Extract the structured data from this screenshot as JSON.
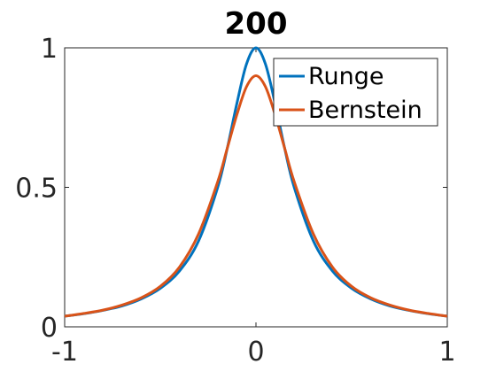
{
  "chart_data": {
    "type": "line",
    "title": "200",
    "xlabel": "",
    "ylabel": "",
    "xlim": [
      -1,
      1
    ],
    "ylim": [
      0,
      1
    ],
    "x_ticks": [
      "-1",
      "0",
      "1"
    ],
    "y_ticks": [
      "0",
      "0.5",
      "1"
    ],
    "grid": false,
    "legend_position": "top-right",
    "series": [
      {
        "name": "Runge",
        "color": "#0072BD",
        "x": [
          -1,
          -0.9,
          -0.8,
          -0.7,
          -0.6,
          -0.5,
          -0.4,
          -0.3,
          -0.2,
          -0.15,
          -0.1,
          -0.05,
          0,
          0.05,
          0.1,
          0.15,
          0.2,
          0.3,
          0.4,
          0.5,
          0.6,
          0.7,
          0.8,
          0.9,
          1
        ],
        "y": [
          0.038,
          0.047,
          0.059,
          0.075,
          0.1,
          0.138,
          0.2,
          0.308,
          0.5,
          0.64,
          0.8,
          0.941,
          1,
          0.941,
          0.8,
          0.64,
          0.5,
          0.308,
          0.2,
          0.138,
          0.1,
          0.075,
          0.059,
          0.047,
          0.038
        ]
      },
      {
        "name": "Bernstein",
        "color": "#D95319",
        "x": [
          -1,
          -0.9,
          -0.8,
          -0.7,
          -0.6,
          -0.5,
          -0.4,
          -0.3,
          -0.2,
          -0.15,
          -0.1,
          -0.05,
          0,
          0.05,
          0.1,
          0.15,
          0.2,
          0.3,
          0.4,
          0.5,
          0.6,
          0.7,
          0.8,
          0.9,
          1
        ],
        "y": [
          0.038,
          0.048,
          0.06,
          0.078,
          0.104,
          0.145,
          0.214,
          0.333,
          0.52,
          0.64,
          0.76,
          0.86,
          0.9,
          0.86,
          0.76,
          0.64,
          0.52,
          0.333,
          0.214,
          0.145,
          0.104,
          0.078,
          0.06,
          0.048,
          0.038
        ]
      }
    ]
  }
}
